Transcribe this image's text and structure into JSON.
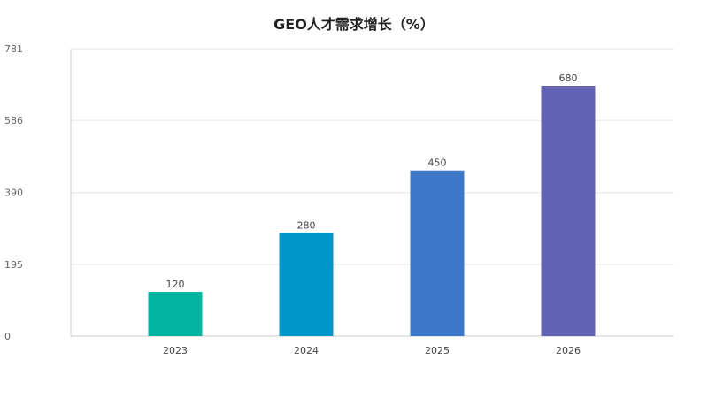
{
  "chart_data": {
    "type": "bar",
    "title": "GEO人才需求增长（%）",
    "categories": [
      "2023",
      "2024",
      "2025",
      "2026"
    ],
    "values": [
      120,
      280,
      450,
      680
    ],
    "ylim": [
      0,
      781
    ],
    "yticks": [
      "0",
      "195",
      "390",
      "586",
      "781"
    ],
    "bar_colors": [
      "#00b5a0",
      "#0096c8",
      "#3d78c8",
      "#6262b5"
    ],
    "grid": true,
    "legend": "none"
  }
}
